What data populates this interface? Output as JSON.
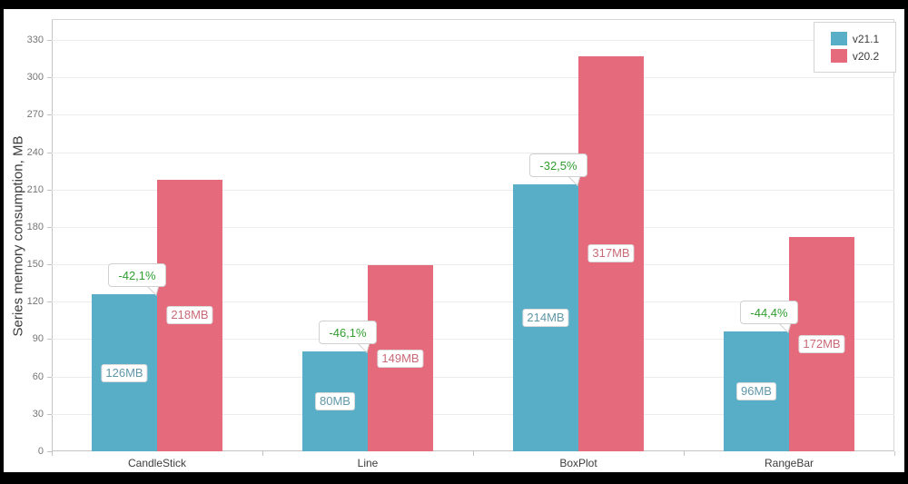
{
  "chart_data": {
    "type": "bar",
    "title": "",
    "xlabel": "",
    "ylabel": "Series memory consumption, MB",
    "categories": [
      "CandleStick",
      "Line",
      "BoxPlot",
      "RangeBar"
    ],
    "series": [
      {
        "name": "v21.1",
        "color": "#58aec7",
        "label_text_color": "#6097a9",
        "values": [
          126,
          80,
          214,
          96
        ],
        "point_labels": [
          "126MB",
          "80MB",
          "214MB",
          "96MB"
        ]
      },
      {
        "name": "v20.2",
        "color": "#e56a7c",
        "label_text_color": "#c96a76",
        "values": [
          218,
          149,
          317,
          172
        ],
        "point_labels": [
          "218MB",
          "149MB",
          "317MB",
          "172MB"
        ]
      }
    ],
    "annotations": [
      {
        "category": "CandleStick",
        "text": "-42,1%"
      },
      {
        "category": "Line",
        "text": "-46,1%"
      },
      {
        "category": "BoxPlot",
        "text": "-32,5%"
      },
      {
        "category": "RangeBar",
        "text": "-44,4%"
      }
    ],
    "annotation_text_color": "#2f9e2f",
    "yticks": [
      0,
      30,
      60,
      90,
      120,
      150,
      180,
      210,
      240,
      270,
      300,
      330
    ],
    "ylim": [
      0,
      345
    ],
    "grid": true,
    "legend_position": "top-right"
  },
  "legend": {
    "items": [
      {
        "label": "v21.1",
        "color": "#58aec7"
      },
      {
        "label": "v20.2",
        "color": "#e56a7c"
      }
    ]
  }
}
